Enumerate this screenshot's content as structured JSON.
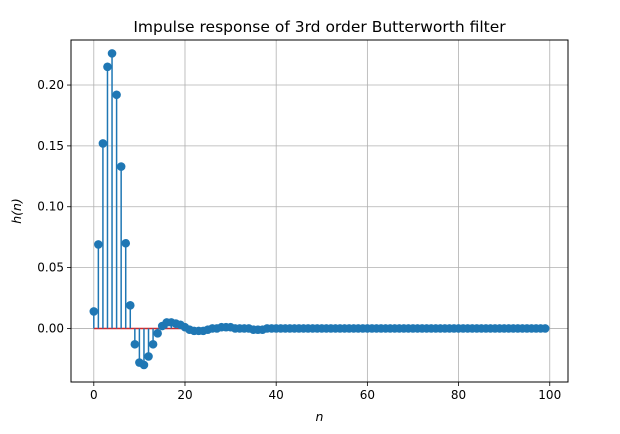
{
  "chart_data": {
    "type": "stem",
    "title": "Impulse response of 3rd order Butterworth filter",
    "xlabel": "n",
    "ylabel": "h(n)",
    "xlim": [
      -5,
      104
    ],
    "ylim": [
      -0.044,
      0.237
    ],
    "xticks": [
      0,
      20,
      40,
      60,
      80,
      100
    ],
    "yticks": [
      0.0,
      0.05,
      0.1,
      0.15,
      0.2
    ],
    "ytick_labels": [
      "0.00",
      "0.05",
      "0.10",
      "0.15",
      "0.20"
    ],
    "xtick_labels": [
      "0",
      "20",
      "40",
      "60",
      "80",
      "100"
    ],
    "grid": true,
    "baseline": 0,
    "colors": {
      "stem": "#1f77b4",
      "marker": "#1f77b4",
      "baseline": "#d62728",
      "grid": "#b0b0b0"
    },
    "x": [
      0,
      1,
      2,
      3,
      4,
      5,
      6,
      7,
      8,
      9,
      10,
      11,
      12,
      13,
      14,
      15,
      16,
      17,
      18,
      19,
      20,
      21,
      22,
      23,
      24,
      25,
      26,
      27,
      28,
      29,
      30,
      31,
      32,
      33,
      34,
      35,
      36,
      37,
      38,
      39,
      40,
      41,
      42,
      43,
      44,
      45,
      46,
      47,
      48,
      49,
      50,
      51,
      52,
      53,
      54,
      55,
      56,
      57,
      58,
      59,
      60,
      61,
      62,
      63,
      64,
      65,
      66,
      67,
      68,
      69,
      70,
      71,
      72,
      73,
      74,
      75,
      76,
      77,
      78,
      79,
      80,
      81,
      82,
      83,
      84,
      85,
      86,
      87,
      88,
      89,
      90,
      91,
      92,
      93,
      94,
      95,
      96,
      97,
      98,
      99
    ],
    "values": [
      0.014,
      0.069,
      0.152,
      0.215,
      0.226,
      0.192,
      0.133,
      0.07,
      0.019,
      -0.013,
      -0.028,
      -0.03,
      -0.023,
      -0.013,
      -0.004,
      0.002,
      0.005,
      0.005,
      0.004,
      0.003,
      0.001,
      -0.001,
      -0.002,
      -0.002,
      -0.002,
      -0.001,
      0.0,
      0.0,
      0.001,
      0.001,
      0.001,
      0.0,
      0.0,
      0.0,
      0.0,
      -0.001,
      -0.001,
      -0.001,
      0.0,
      0.0,
      0.0,
      0.0,
      0.0,
      0.0,
      0.0,
      0.0,
      0.0,
      0.0,
      0.0,
      0.0,
      0.0,
      0.0,
      0.0,
      0.0,
      0.0,
      0.0,
      0.0,
      0.0,
      0.0,
      0.0,
      0.0,
      0.0,
      0.0,
      0.0,
      0.0,
      0.0,
      0.0,
      0.0,
      0.0,
      0.0,
      0.0,
      0.0,
      0.0,
      0.0,
      0.0,
      0.0,
      0.0,
      0.0,
      0.0,
      0.0,
      0.0,
      0.0,
      0.0,
      0.0,
      0.0,
      0.0,
      0.0,
      0.0,
      0.0,
      0.0,
      0.0,
      0.0,
      0.0,
      0.0,
      0.0,
      0.0,
      0.0,
      0.0,
      0.0,
      0.0
    ]
  }
}
